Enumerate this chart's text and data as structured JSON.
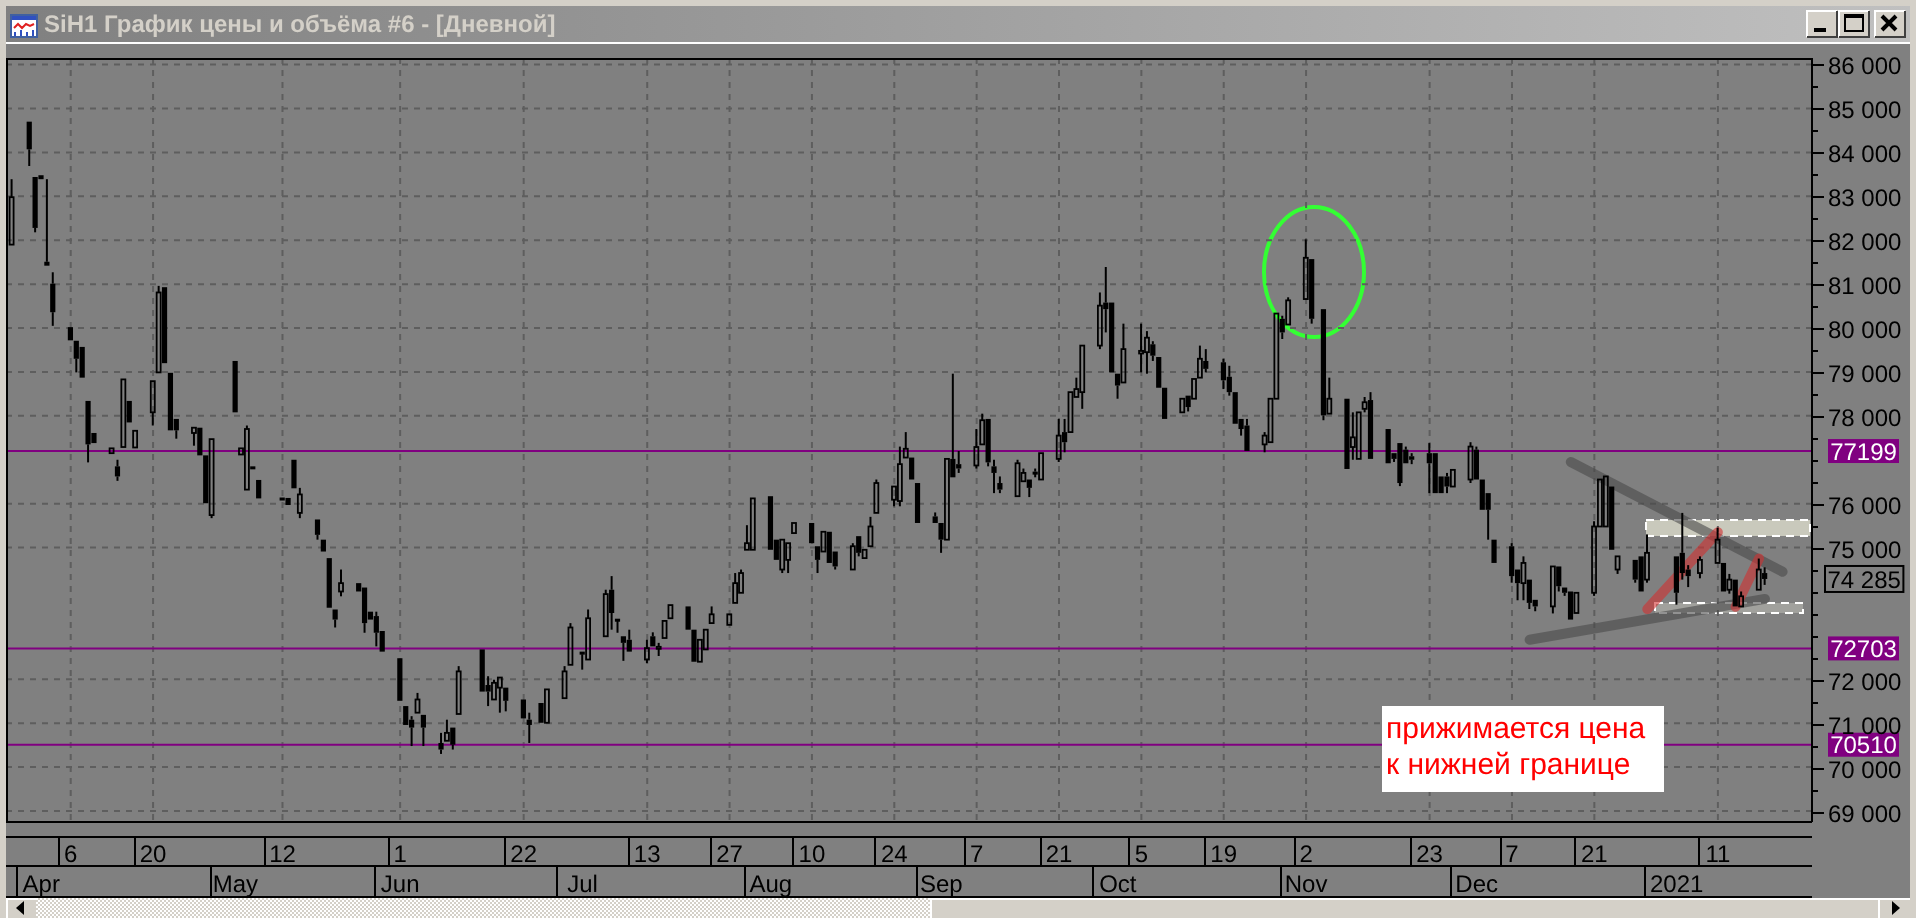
{
  "chart_data": {
    "type": "candlestick",
    "title": "SiH1 График цены и объёма #6 - [Дневной]",
    "color": "#000000",
    "x": [
      "2020-03-27",
      "2020-03-30",
      "2020-03-31",
      "2020-04-01",
      "2020-04-02",
      "2020-04-03",
      "2020-04-06",
      "2020-04-07",
      "2020-04-08",
      "2020-04-09",
      "2020-04-10",
      "2020-04-13",
      "2020-04-14",
      "2020-04-15",
      "2020-04-16",
      "2020-04-17",
      "2020-04-20",
      "2020-04-21",
      "2020-04-22",
      "2020-04-23",
      "2020-04-24",
      "2020-04-27",
      "2020-04-28",
      "2020-04-29",
      "2020-04-30",
      "2020-05-04",
      "2020-05-05",
      "2020-05-06",
      "2020-05-07",
      "2020-05-08",
      "2020-05-12",
      "2020-05-13",
      "2020-05-14",
      "2020-05-15",
      "2020-05-18",
      "2020-05-19",
      "2020-05-20",
      "2020-05-21",
      "2020-05-22",
      "2020-05-25",
      "2020-05-26",
      "2020-05-27",
      "2020-05-28",
      "2020-05-29",
      "2020-06-01",
      "2020-06-02",
      "2020-06-03",
      "2020-06-04",
      "2020-06-05",
      "2020-06-08",
      "2020-06-09",
      "2020-06-10",
      "2020-06-11",
      "2020-06-15",
      "2020-06-16",
      "2020-06-17",
      "2020-06-18",
      "2020-06-19",
      "2020-06-22",
      "2020-06-23",
      "2020-06-25",
      "2020-06-26",
      "2020-06-29",
      "2020-06-30",
      "2020-07-02",
      "2020-07-03",
      "2020-07-06",
      "2020-07-07",
      "2020-07-08",
      "2020-07-09",
      "2020-07-10",
      "2020-07-13",
      "2020-07-14",
      "2020-07-15",
      "2020-07-16",
      "2020-07-17",
      "2020-07-20",
      "2020-07-21",
      "2020-07-22",
      "2020-07-23",
      "2020-07-24",
      "2020-07-27",
      "2020-07-28",
      "2020-07-29",
      "2020-07-30",
      "2020-07-31",
      "2020-08-03",
      "2020-08-04",
      "2020-08-05",
      "2020-08-06",
      "2020-08-07",
      "2020-08-10",
      "2020-08-11",
      "2020-08-12",
      "2020-08-13",
      "2020-08-14",
      "2020-08-17",
      "2020-08-18",
      "2020-08-19",
      "2020-08-20",
      "2020-08-21",
      "2020-08-24",
      "2020-08-25",
      "2020-08-26",
      "2020-08-27",
      "2020-08-28",
      "2020-08-31",
      "2020-09-01",
      "2020-09-02",
      "2020-09-03",
      "2020-09-04",
      "2020-09-07",
      "2020-09-08",
      "2020-09-09",
      "2020-09-10",
      "2020-09-11",
      "2020-09-14",
      "2020-09-15",
      "2020-09-16",
      "2020-09-17",
      "2020-09-18",
      "2020-09-21",
      "2020-09-22",
      "2020-09-23",
      "2020-09-24",
      "2020-09-25",
      "2020-09-28",
      "2020-09-29",
      "2020-09-30",
      "2020-10-01",
      "2020-10-02",
      "2020-10-05",
      "2020-10-06",
      "2020-10-07",
      "2020-10-08",
      "2020-10-09",
      "2020-10-12",
      "2020-10-13",
      "2020-10-14",
      "2020-10-15",
      "2020-10-16",
      "2020-10-19",
      "2020-10-20",
      "2020-10-21",
      "2020-10-22",
      "2020-10-23",
      "2020-10-26",
      "2020-10-27",
      "2020-10-28",
      "2020-10-29",
      "2020-10-30",
      "2020-11-02",
      "2020-11-03",
      "2020-11-05",
      "2020-11-06",
      "2020-11-09",
      "2020-11-10",
      "2020-11-11",
      "2020-11-12",
      "2020-11-13",
      "2020-11-16",
      "2020-11-17",
      "2020-11-18",
      "2020-11-19",
      "2020-11-20",
      "2020-11-23",
      "2020-11-24",
      "2020-11-25",
      "2020-11-26",
      "2020-11-27",
      "2020-11-30",
      "2020-12-01",
      "2020-12-02",
      "2020-12-03",
      "2020-12-04",
      "2020-12-07",
      "2020-12-08",
      "2020-12-09",
      "2020-12-10",
      "2020-12-11",
      "2020-12-14",
      "2020-12-15",
      "2020-12-16",
      "2020-12-17",
      "2020-12-18",
      "2020-12-21",
      "2020-12-22",
      "2020-12-23",
      "2020-12-24",
      "2020-12-25",
      "2020-12-28",
      "2020-12-29",
      "2020-12-30",
      "2021-01-04",
      "2021-01-05",
      "2021-01-06",
      "2021-01-08",
      "2021-01-11",
      "2021-01-12",
      "2021-01-13",
      "2021-01-14",
      "2021-01-15",
      "2021-01-18",
      "2021-01-19"
    ],
    "ohlc": [
      [
        81900,
        83390,
        81900,
        82980
      ],
      [
        84700,
        84700,
        83690,
        84070
      ],
      [
        83440,
        83440,
        82180,
        82280
      ],
      [
        83480,
        83500,
        83360,
        83390
      ],
      [
        81510,
        83390,
        81390,
        81420
      ],
      [
        81010,
        81270,
        80050,
        80360
      ],
      [
        80020,
        80050,
        79690,
        79720
      ],
      [
        79710,
        79710,
        78990,
        79300
      ],
      [
        79570,
        79600,
        78840,
        78870
      ],
      [
        78340,
        78390,
        76940,
        77350
      ],
      [
        77610,
        77610,
        77350,
        77380
      ],
      [
        77150,
        77300,
        77100,
        77260
      ],
      [
        76850,
        77000,
        76520,
        76620
      ],
      [
        77290,
        78870,
        77250,
        78830
      ],
      [
        78340,
        78390,
        77830,
        77850
      ],
      [
        77280,
        77700,
        77250,
        77660
      ],
      [
        78080,
        78810,
        77780,
        78790
      ],
      [
        78990,
        80960,
        78960,
        80810
      ],
      [
        80930,
        80960,
        79140,
        79200
      ],
      [
        78980,
        78980,
        77650,
        77670
      ],
      [
        77930,
        77960,
        77480,
        77670
      ],
      [
        77610,
        77750,
        77320,
        77730
      ],
      [
        77730,
        77750,
        77050,
        77100
      ],
      [
        77100,
        77150,
        75950,
        76010
      ],
      [
        75740,
        77480,
        75670,
        77470
      ],
      [
        79250,
        79300,
        78050,
        78080
      ],
      [
        77120,
        77300,
        77080,
        77260
      ],
      [
        76320,
        77780,
        76270,
        77700
      ],
      [
        76850,
        76870,
        76830,
        76840
      ],
      [
        76540,
        76550,
        76090,
        76120
      ],
      [
        76140,
        76150,
        76100,
        76110
      ],
      [
        76130,
        76140,
        75970,
        75970
      ],
      [
        77000,
        77050,
        76350,
        76350
      ],
      [
        75790,
        76360,
        75670,
        76210
      ],
      [
        75640,
        75670,
        75180,
        75290
      ],
      [
        75180,
        75180,
        74850,
        74910
      ],
      [
        74760,
        74760,
        73630,
        73630
      ],
      [
        73590,
        73590,
        73180,
        73360
      ],
      [
        74000,
        74500,
        73890,
        74190
      ],
      [
        74190,
        74240,
        73960,
        74000
      ],
      [
        74090,
        74090,
        73060,
        73280
      ],
      [
        73540,
        73540,
        73330,
        73360
      ],
      [
        73440,
        73540,
        72750,
        73060
      ],
      [
        73100,
        73100,
        72600,
        72630
      ],
      [
        72480,
        72480,
        71510,
        71510
      ],
      [
        71390,
        71390,
        70930,
        70960
      ],
      [
        71080,
        71160,
        70480,
        70900
      ],
      [
        71240,
        71690,
        71240,
        71540
      ],
      [
        71190,
        71190,
        70480,
        70900
      ],
      [
        70550,
        70780,
        70300,
        70400
      ],
      [
        70600,
        71080,
        70550,
        70780
      ],
      [
        70900,
        70930,
        70400,
        70510
      ],
      [
        71210,
        72300,
        71210,
        72180
      ],
      [
        72680,
        72680,
        71690,
        71720
      ],
      [
        71870,
        72070,
        71390,
        71720
      ],
      [
        71540,
        71990,
        71510,
        71920
      ],
      [
        71810,
        72070,
        71240,
        72040
      ],
      [
        71810,
        71850,
        71270,
        71510
      ],
      [
        71540,
        71560,
        71080,
        71110
      ],
      [
        71080,
        71240,
        70550,
        70960
      ],
      [
        71460,
        71480,
        70990,
        71010
      ],
      [
        71010,
        71800,
        70990,
        71770
      ],
      [
        71570,
        72300,
        71540,
        72180
      ],
      [
        72330,
        73280,
        72300,
        73180
      ],
      [
        72630,
        72630,
        72220,
        72570
      ],
      [
        72450,
        73590,
        72450,
        73390
      ],
      [
        72980,
        74040,
        72940,
        73940
      ],
      [
        74040,
        74350,
        73130,
        73510
      ],
      [
        73380,
        73390,
        73060,
        73340
      ],
      [
        72980,
        72980,
        72420,
        72830
      ],
      [
        72900,
        73130,
        72600,
        72630
      ],
      [
        72450,
        72900,
        72370,
        72710
      ],
      [
        72980,
        73070,
        72700,
        72750
      ],
      [
        72700,
        72830,
        72530,
        72740
      ],
      [
        72940,
        73360,
        72900,
        73330
      ],
      [
        73390,
        73720,
        73360,
        73690
      ],
      [
        73660,
        73690,
        73100,
        73130
      ],
      [
        73130,
        73130,
        72400,
        72400
      ],
      [
        72400,
        72940,
        72400,
        72900
      ],
      [
        72680,
        73130,
        72680,
        73130
      ],
      [
        73280,
        73660,
        73240,
        73480
      ],
      [
        73240,
        73500,
        73210,
        73480
      ],
      [
        73740,
        74420,
        73690,
        74190
      ],
      [
        73970,
        74500,
        73950,
        74420
      ],
      [
        74950,
        75510,
        74910,
        75100
      ],
      [
        74950,
        76150,
        74940,
        76120
      ],
      [
        76170,
        76170,
        74950,
        74950
      ],
      [
        75180,
        75180,
        74720,
        74720
      ],
      [
        74500,
        75200,
        74420,
        75180
      ],
      [
        74720,
        75150,
        74420,
        75100
      ],
      [
        75330,
        75600,
        75300,
        75560
      ],
      [
        75560,
        75600,
        75050,
        75100
      ],
      [
        75030,
        75050,
        74420,
        74720
      ],
      [
        74910,
        75400,
        74880,
        75360
      ],
      [
        75360,
        75400,
        74600,
        74650
      ],
      [
        74910,
        74950,
        74500,
        74570
      ],
      [
        74500,
        75100,
        74450,
        75030
      ],
      [
        75260,
        75300,
        74800,
        74880
      ],
      [
        74760,
        75000,
        74700,
        74950
      ],
      [
        75030,
        75700,
        74980,
        75480
      ],
      [
        75790,
        76550,
        75740,
        76470
      ],
      [
        76090,
        76420,
        75940,
        76390
      ],
      [
        76060,
        77300,
        75940,
        76900
      ],
      [
        77050,
        77630,
        77000,
        77250
      ],
      [
        77050,
        77080,
        76500,
        76550
      ],
      [
        76470,
        76470,
        75560,
        75560
      ],
      [
        75710,
        75800,
        75500,
        75560
      ],
      [
        75560,
        75560,
        74880,
        75180
      ],
      [
        75180,
        77050,
        75150,
        77020
      ],
      [
        77020,
        78960,
        76550,
        76600
      ],
      [
        76900,
        77200,
        76700,
        76800
      ],
      [
        76870,
        77700,
        76800,
        77290
      ],
      [
        77350,
        78050,
        77350,
        77900
      ],
      [
        77930,
        77930,
        76850,
        76940
      ],
      [
        76850,
        77000,
        76240,
        76700
      ],
      [
        76470,
        76620,
        76240,
        76320
      ],
      [
        76170,
        77000,
        76120,
        76920
      ],
      [
        76510,
        76800,
        76470,
        76700
      ],
      [
        76550,
        76600,
        76150,
        76360
      ],
      [
        76730,
        76800,
        76600,
        76700
      ],
      [
        76550,
        77200,
        76500,
        77150
      ],
      [
        77020,
        77930,
        76950,
        77550
      ],
      [
        77630,
        77930,
        77170,
        77400
      ],
      [
        77630,
        78600,
        77600,
        78540
      ],
      [
        78430,
        78870,
        78400,
        78610
      ],
      [
        78540,
        79650,
        78160,
        79600
      ],
      [
        79600,
        80810,
        79520,
        80510
      ],
      [
        80580,
        81390,
        79900,
        80430
      ],
      [
        80580,
        80600,
        78990,
        78990
      ],
      [
        78960,
        79000,
        78390,
        78690
      ],
      [
        78760,
        80100,
        78700,
        79520
      ],
      [
        79420,
        80100,
        78990,
        79480
      ],
      [
        79450,
        79930,
        78960,
        79780
      ],
      [
        79630,
        79700,
        79250,
        79370
      ],
      [
        79340,
        79400,
        78600,
        78640
      ],
      [
        78640,
        78650,
        77900,
        77930
      ],
      [
        78080,
        78450,
        78050,
        78390
      ],
      [
        78460,
        78500,
        78100,
        78200
      ],
      [
        78390,
        78900,
        78350,
        78840
      ],
      [
        78870,
        79600,
        78840,
        79300
      ],
      [
        79250,
        79520,
        78990,
        79070
      ],
      [
        79220,
        79300,
        78610,
        78810
      ],
      [
        78890,
        79140,
        78460,
        78540
      ],
      [
        78540,
        78540,
        77780,
        77820
      ],
      [
        77930,
        77930,
        77550,
        77700
      ],
      [
        77780,
        77930,
        77170,
        77200
      ],
      [
        77350,
        77630,
        77170,
        77550
      ],
      [
        77400,
        78400,
        77350,
        78390
      ],
      [
        78390,
        80360,
        78350,
        80330
      ],
      [
        80210,
        80280,
        79750,
        79900
      ],
      [
        80080,
        80700,
        80050,
        80630
      ],
      [
        80660,
        82020,
        80600,
        81600
      ],
      [
        81570,
        81600,
        80100,
        80210
      ],
      [
        80430,
        80450,
        77900,
        78010
      ],
      [
        78050,
        78870,
        78000,
        78390
      ],
      [
        78390,
        78400,
        76790,
        76790
      ],
      [
        77290,
        78080,
        77000,
        77510
      ],
      [
        77020,
        78100,
        77000,
        78080
      ],
      [
        78160,
        78430,
        78080,
        78310
      ],
      [
        78360,
        78540,
        77000,
        77020
      ],
      [
        77700,
        77750,
        76900,
        76920
      ],
      [
        77150,
        77200,
        76950,
        77020
      ],
      [
        77380,
        77400,
        76400,
        76470
      ],
      [
        77230,
        77300,
        76900,
        76920
      ],
      [
        77080,
        77150,
        76900,
        77000
      ],
      [
        77150,
        77380,
        76240,
        76920
      ],
      [
        77150,
        77200,
        76200,
        76240
      ],
      [
        76620,
        76650,
        76200,
        76240
      ],
      [
        76620,
        76700,
        76240,
        76390
      ],
      [
        76390,
        76800,
        76360,
        76770
      ],
      [
        76550,
        77400,
        76470,
        77300
      ],
      [
        77230,
        77300,
        76500,
        76550
      ],
      [
        76550,
        76600,
        75800,
        75860
      ],
      [
        76240,
        76300,
        75180,
        75860
      ],
      [
        75180,
        75200,
        74600,
        74650
      ],
      [
        75030,
        75100,
        74200,
        74350
      ],
      [
        74500,
        74550,
        73800,
        74190
      ],
      [
        74190,
        74800,
        73800,
        74650
      ],
      [
        74270,
        74300,
        73600,
        73740
      ],
      [
        73810,
        73850,
        73550,
        73660
      ],
      [
        73660,
        74600,
        73500,
        74570
      ],
      [
        74570,
        74600,
        74000,
        74120
      ],
      [
        74090,
        74100,
        73900,
        73970
      ],
      [
        74000,
        74000,
        73300,
        73360
      ],
      [
        73510,
        74000,
        73450,
        73970
      ],
      [
        73970,
        75600,
        73900,
        75480
      ],
      [
        75480,
        76600,
        75450,
        76550
      ],
      [
        75480,
        76650,
        75450,
        76620
      ],
      [
        76390,
        76400,
        74900,
        74950
      ],
      [
        74500,
        74850,
        74400,
        74800
      ],
      [
        74720,
        74750,
        74200,
        74270
      ],
      [
        74800,
        74850,
        73950,
        74000
      ],
      [
        74270,
        75300,
        74200,
        74880
      ],
      [
        74800,
        74850,
        73700,
        73970
      ],
      [
        74880,
        75790,
        74270,
        74420
      ],
      [
        74500,
        74600,
        74100,
        74350
      ],
      [
        74420,
        74800,
        74300,
        74720
      ],
      [
        74650,
        75450,
        74600,
        75180
      ],
      [
        74650,
        74700,
        73950,
        74000
      ],
      [
        74040,
        74400,
        73950,
        74270
      ],
      [
        74270,
        74300,
        73600,
        73660
      ],
      [
        73660,
        74000,
        73600,
        73890
      ],
      [
        74040,
        74750,
        74000,
        74500
      ],
      [
        74420,
        74550,
        74150,
        74285
      ]
    ],
    "series": [
      {
        "type": "line",
        "color": "#4a4a4a",
        "x": [
          "2020-12-17",
          "2021-01-22"
        ],
        "values": [
          76950,
          74450
        ]
      },
      {
        "type": "line",
        "color": "#4a4a4a",
        "x": [
          "2020-12-10",
          "2021-01-19"
        ],
        "values": [
          72900,
          73830
        ]
      },
      {
        "type": "line",
        "color": "#d03030",
        "x": [
          "2020-12-30",
          "2021-01-11"
        ],
        "values": [
          73600,
          75350
        ]
      },
      {
        "type": "line",
        "color": "#d03030",
        "x": [
          "2021-01-14",
          "2021-01-18"
        ],
        "values": [
          73650,
          74750
        ]
      }
    ],
    "xlim": [
      "2020-03-26",
      "2021-01-27"
    ],
    "xticks": [
      {
        "value": "2020-04-06",
        "label": "6"
      },
      {
        "value": "2020-04-20",
        "label": "20"
      },
      {
        "value": "2020-05-12",
        "label": "12"
      },
      {
        "value": "2020-06-01",
        "label": "1"
      },
      {
        "value": "2020-06-22",
        "label": "22"
      },
      {
        "value": "2020-07-13",
        "label": "13"
      },
      {
        "value": "2020-07-27",
        "label": "27"
      },
      {
        "value": "2020-08-10",
        "label": "10"
      },
      {
        "value": "2020-08-24",
        "label": "24"
      },
      {
        "value": "2020-09-07",
        "label": "7"
      },
      {
        "value": "2020-09-21",
        "label": "21"
      },
      {
        "value": "2020-10-05",
        "label": "5"
      },
      {
        "value": "2020-10-19",
        "label": "19"
      },
      {
        "value": "2020-11-02",
        "label": "2"
      },
      {
        "value": "2020-11-23",
        "label": "23"
      },
      {
        "value": "2020-12-07",
        "label": "7"
      },
      {
        "value": "2020-12-21",
        "label": "21"
      },
      {
        "value": "2021-01-11",
        "label": "11"
      }
    ],
    "x2lim": [
      "2020-03-26",
      "2021-01-27"
    ],
    "x2ticks": [
      {
        "value": "2020-04-01",
        "label": "Apr"
      },
      {
        "value": "2020-05-04",
        "label": "May"
      },
      {
        "value": "2020-06-01",
        "label": "Jun"
      },
      {
        "value": "2020-07-02",
        "label": "Jul"
      },
      {
        "value": "2020-08-03",
        "label": "Aug"
      },
      {
        "value": "2020-09-01",
        "label": "Sep"
      },
      {
        "value": "2020-10-01",
        "label": "Oct"
      },
      {
        "value": "2020-11-02",
        "label": "Nov"
      },
      {
        "value": "2020-12-01",
        "label": "Dec"
      },
      {
        "value": "2021-01-04",
        "label": "2021"
      }
    ],
    "ylim": [
      68750,
      86150
    ],
    "yticks": [
      {
        "value": 69000,
        "label": "69 000"
      },
      {
        "value": 69500,
        "label": null
      },
      {
        "value": 70000,
        "label": "70 000"
      },
      {
        "value": 70500,
        "label": null
      },
      {
        "value": 71000,
        "label": "71 000"
      },
      {
        "value": 71500,
        "label": null
      },
      {
        "value": 72000,
        "label": "72 000"
      },
      {
        "value": 72500,
        "label": null
      },
      {
        "value": 73000,
        "label": null
      },
      {
        "value": 73500,
        "label": null
      },
      {
        "value": 74000,
        "label": null
      },
      {
        "value": 74500,
        "label": null
      },
      {
        "value": 75000,
        "label": "75 000"
      },
      {
        "value": 75500,
        "label": null
      },
      {
        "value": 76000,
        "label": "76 000"
      },
      {
        "value": 76500,
        "label": null
      },
      {
        "value": 77000,
        "label": null
      },
      {
        "value": 77500,
        "label": null
      },
      {
        "value": 78000,
        "label": "78 000"
      },
      {
        "value": 78500,
        "label": null
      },
      {
        "value": 79000,
        "label": "79 000"
      },
      {
        "value": 79500,
        "label": null
      },
      {
        "value": 80000,
        "label": "80 000"
      },
      {
        "value": 80500,
        "label": null
      },
      {
        "value": 81000,
        "label": "81 000"
      },
      {
        "value": 81500,
        "label": null
      },
      {
        "value": 82000,
        "label": "82 000"
      },
      {
        "value": 82500,
        "label": null
      },
      {
        "value": 83000,
        "label": "83 000"
      },
      {
        "value": 83500,
        "label": null
      },
      {
        "value": 84000,
        "label": "84 000"
      },
      {
        "value": 84500,
        "label": null
      },
      {
        "value": 85000,
        "label": "85 000"
      },
      {
        "value": 85500,
        "label": null
      },
      {
        "value": 86000,
        "label": "86 000"
      }
    ],
    "grid": true,
    "ref_lines": [
      {
        "axis": "y",
        "value": 77199,
        "label": "77199",
        "color": "#800080"
      },
      {
        "axis": "y",
        "value": 72703,
        "label": "72703",
        "color": "#800080"
      },
      {
        "axis": "y",
        "value": 70510,
        "label": "70510",
        "color": "#800080"
      }
    ],
    "annotations": [
      "прижимается цена к нижней границе",
      "74 285"
    ]
  }
}
